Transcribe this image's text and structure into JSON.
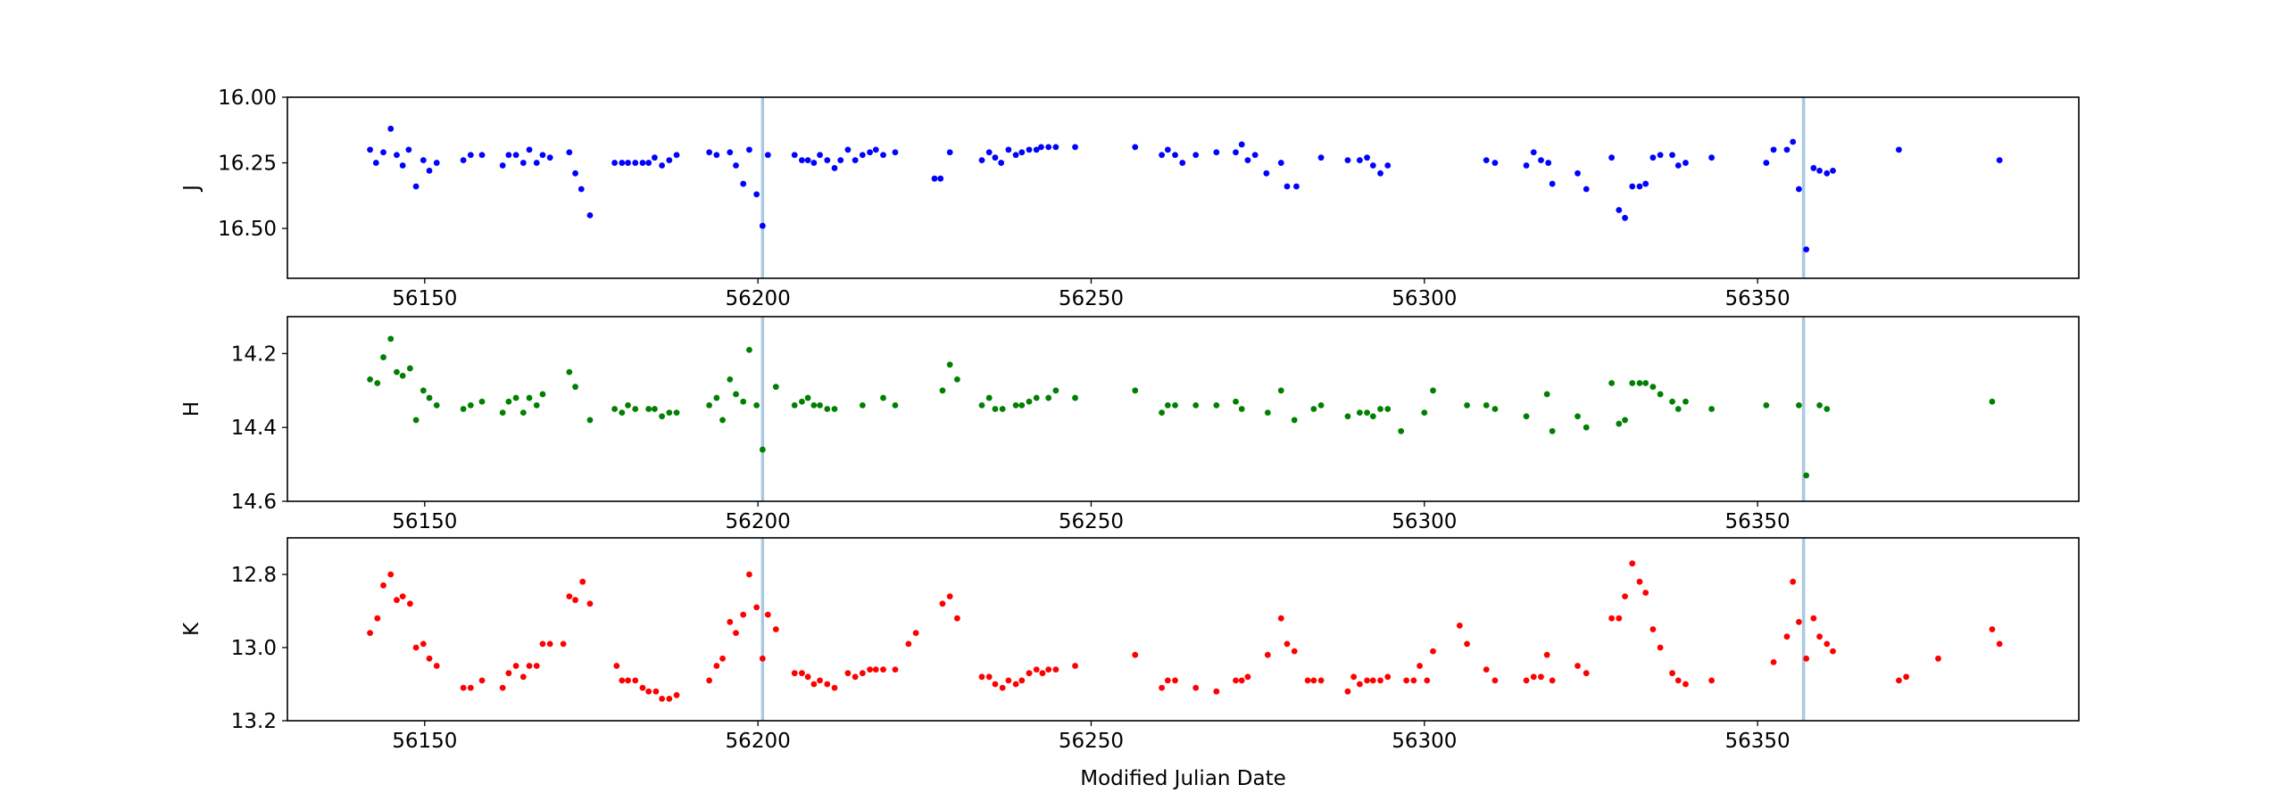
{
  "chart_data": [
    {
      "type": "scatter",
      "ylabel": "J",
      "color": "#0000ff",
      "invert_y": true,
      "xlim": [
        56129.4,
        56398.2
      ],
      "xticks": [
        56150,
        56200,
        56250,
        56300,
        56350
      ],
      "ylim": [
        16.0,
        16.69
      ],
      "yticks": [
        {
          "value": 16.0,
          "label": "16.00"
        },
        16.25,
        {
          "value": 16.5,
          "label": "16.50"
        }
      ],
      "vlines": [
        56200.7,
        56356.9
      ],
      "vline_color": "#a9c9e3",
      "x": [
        56141.8,
        56142.7,
        56143.8,
        56144.9,
        56145.8,
        56146.7,
        56147.6,
        56148.7,
        56149.8,
        56150.7,
        56151.8,
        56155.8,
        56156.9,
        56158.6,
        56161.7,
        56162.6,
        56163.7,
        56164.8,
        56165.7,
        56166.8,
        56167.7,
        56168.8,
        56171.7,
        56172.6,
        56173.5,
        56174.8,
        56178.5,
        56179.6,
        56180.5,
        56181.6,
        56182.7,
        56183.6,
        56184.5,
        56185.6,
        56186.7,
        56187.8,
        56192.7,
        56193.8,
        56195.8,
        56196.7,
        56197.8,
        56198.7,
        56199.8,
        56200.7,
        56201.5,
        56205.5,
        56206.6,
        56207.5,
        56208.4,
        56209.3,
        56210.4,
        56211.5,
        56212.4,
        56213.5,
        56214.6,
        56215.7,
        56216.8,
        56217.7,
        56218.8,
        56220.6,
        56226.5,
        56227.4,
        56228.8,
        56233.6,
        56234.7,
        56235.6,
        56236.5,
        56237.6,
        56238.7,
        56239.6,
        56240.7,
        56241.8,
        56242.5,
        56243.6,
        56244.7,
        56247.6,
        56256.6,
        56260.6,
        56261.5,
        56262.6,
        56263.7,
        56265.7,
        56268.8,
        56271.7,
        56272.6,
        56273.5,
        56274.6,
        56276.3,
        56278.5,
        56279.4,
        56280.8,
        56284.5,
        56288.5,
        56290.3,
        56291.4,
        56292.3,
        56293.4,
        56294.5,
        56309.3,
        56310.6,
        56315.3,
        56316.4,
        56317.5,
        56318.6,
        56319.2,
        56323.0,
        56324.3,
        56328.1,
        56329.2,
        56330.1,
        56331.2,
        56332.3,
        56333.2,
        56334.3,
        56335.4,
        56337.2,
        56338.1,
        56339.2,
        56343.1,
        56351.3,
        56352.4,
        56354.4,
        56355.3,
        56356.2,
        56357.3,
        56358.4,
        56359.3,
        56360.4,
        56361.3,
        56371.2,
        56386.3
      ],
      "values": [
        16.2,
        16.25,
        16.21,
        16.12,
        16.22,
        16.26,
        16.2,
        16.34,
        16.24,
        16.28,
        16.25,
        16.24,
        16.22,
        16.22,
        16.26,
        16.22,
        16.22,
        16.25,
        16.2,
        16.25,
        16.22,
        16.23,
        16.21,
        16.29,
        16.35,
        16.45,
        16.25,
        16.25,
        16.25,
        16.25,
        16.25,
        16.25,
        16.23,
        16.26,
        16.24,
        16.22,
        16.21,
        16.22,
        16.21,
        16.26,
        16.33,
        16.2,
        16.37,
        16.49,
        16.22,
        16.22,
        16.24,
        16.24,
        16.25,
        16.22,
        16.24,
        16.27,
        16.24,
        16.2,
        16.24,
        16.22,
        16.21,
        16.2,
        16.22,
        16.21,
        16.31,
        16.31,
        16.21,
        16.24,
        16.21,
        16.23,
        16.25,
        16.2,
        16.22,
        16.21,
        16.2,
        16.2,
        16.19,
        16.19,
        16.19,
        16.19,
        16.19,
        16.22,
        16.2,
        16.22,
        16.25,
        16.22,
        16.21,
        16.21,
        16.18,
        16.24,
        16.22,
        16.29,
        16.25,
        16.34,
        16.34,
        16.23,
        16.24,
        16.24,
        16.23,
        16.26,
        16.29,
        16.26,
        16.24,
        16.25,
        16.26,
        16.21,
        16.24,
        16.25,
        16.33,
        16.29,
        16.35,
        16.23,
        16.43,
        16.46,
        16.34,
        16.34,
        16.33,
        16.23,
        16.22,
        16.22,
        16.26,
        16.25,
        16.23,
        16.25,
        16.2,
        16.2,
        16.17,
        16.35,
        16.58,
        16.27,
        16.28,
        16.29,
        16.28,
        16.2,
        16.24
      ]
    },
    {
      "type": "scatter",
      "ylabel": "H",
      "color": "#008000",
      "invert_y": true,
      "xlim": [
        56129.4,
        56398.2
      ],
      "xticks": [
        56150,
        56200,
        56250,
        56300,
        56350
      ],
      "ylim": [
        14.1,
        14.6
      ],
      "yticks": [
        14.2,
        14.4,
        14.6
      ],
      "vlines": [
        56200.7,
        56356.9
      ],
      "vline_color": "#a9c9e3",
      "x": [
        56141.8,
        56142.9,
        56143.8,
        56144.9,
        56145.8,
        56146.7,
        56147.8,
        56148.7,
        56149.8,
        56150.7,
        56151.8,
        56155.8,
        56156.9,
        56158.6,
        56161.7,
        56162.6,
        56163.7,
        56164.8,
        56165.7,
        56166.8,
        56167.7,
        56171.7,
        56172.6,
        56174.8,
        56178.5,
        56179.6,
        56180.5,
        56181.6,
        56183.6,
        56184.5,
        56185.6,
        56186.7,
        56187.8,
        56192.7,
        56193.8,
        56194.7,
        56195.8,
        56196.7,
        56197.8,
        56198.7,
        56199.8,
        56200.7,
        56202.7,
        56205.5,
        56206.6,
        56207.5,
        56208.4,
        56209.3,
        56210.4,
        56211.5,
        56215.7,
        56218.8,
        56220.6,
        56227.7,
        56228.8,
        56229.9,
        56233.6,
        56234.7,
        56235.6,
        56236.7,
        56238.7,
        56239.6,
        56240.7,
        56241.8,
        56243.6,
        56244.7,
        56247.6,
        56256.6,
        56260.6,
        56261.5,
        56262.6,
        56265.7,
        56268.8,
        56271.7,
        56272.6,
        56276.5,
        56278.5,
        56280.5,
        56283.4,
        56284.5,
        56288.5,
        56290.3,
        56291.4,
        56292.3,
        56293.4,
        56294.5,
        56296.5,
        56300.0,
        56301.3,
        56306.4,
        56309.3,
        56310.6,
        56315.3,
        56318.4,
        56319.2,
        56323.0,
        56324.3,
        56328.1,
        56329.2,
        56330.1,
        56331.2,
        56332.3,
        56333.2,
        56334.3,
        56335.4,
        56337.2,
        56338.1,
        56339.2,
        56343.1,
        56351.3,
        56356.2,
        56357.3,
        56359.3,
        56360.4,
        56385.2
      ],
      "values": [
        14.27,
        14.28,
        14.21,
        14.16,
        14.25,
        14.26,
        14.24,
        14.38,
        14.3,
        14.32,
        14.34,
        14.35,
        14.34,
        14.33,
        14.36,
        14.33,
        14.32,
        14.36,
        14.32,
        14.34,
        14.31,
        14.25,
        14.29,
        14.38,
        14.35,
        14.36,
        14.34,
        14.35,
        14.35,
        14.35,
        14.37,
        14.36,
        14.36,
        14.34,
        14.32,
        14.38,
        14.27,
        14.31,
        14.33,
        14.19,
        14.34,
        14.46,
        14.29,
        14.34,
        14.33,
        14.32,
        14.34,
        14.34,
        14.35,
        14.35,
        14.34,
        14.32,
        14.34,
        14.3,
        14.23,
        14.27,
        14.34,
        14.32,
        14.35,
        14.35,
        14.34,
        14.34,
        14.33,
        14.32,
        14.32,
        14.3,
        14.32,
        14.3,
        14.36,
        14.34,
        14.34,
        14.34,
        14.34,
        14.33,
        14.35,
        14.36,
        14.3,
        14.38,
        14.35,
        14.34,
        14.37,
        14.36,
        14.36,
        14.37,
        14.35,
        14.35,
        14.41,
        14.36,
        14.3,
        14.34,
        14.34,
        14.35,
        14.37,
        14.31,
        14.41,
        14.37,
        14.4,
        14.28,
        14.39,
        14.38,
        14.28,
        14.28,
        14.28,
        14.29,
        14.31,
        14.33,
        14.35,
        14.33,
        14.35,
        14.34,
        14.34,
        14.53,
        14.34,
        14.35,
        14.33
      ]
    },
    {
      "type": "scatter",
      "ylabel": "K",
      "xlabel": "Modified Julian Date",
      "color": "#ff0000",
      "invert_y": true,
      "xlim": [
        56129.4,
        56398.2
      ],
      "xticks": [
        56150,
        56200,
        56250,
        56300,
        56350
      ],
      "ylim": [
        12.7,
        13.2
      ],
      "yticks": [
        12.8,
        {
          "value": 13.0,
          "label": "13.0"
        },
        13.2
      ],
      "vlines": [
        56200.7,
        56356.9
      ],
      "vline_color": "#a9c9e3",
      "x": [
        56141.8,
        56142.9,
        56143.8,
        56144.9,
        56145.8,
        56146.7,
        56147.8,
        56148.7,
        56149.8,
        56150.7,
        56151.8,
        56155.8,
        56156.9,
        56158.6,
        56161.7,
        56162.6,
        56163.7,
        56164.8,
        56165.7,
        56166.8,
        56167.7,
        56168.8,
        56170.8,
        56171.7,
        56172.6,
        56173.7,
        56174.8,
        56178.8,
        56179.6,
        56180.5,
        56181.6,
        56182.7,
        56183.6,
        56184.7,
        56185.6,
        56186.7,
        56187.8,
        56192.7,
        56193.8,
        56194.7,
        56195.8,
        56196.7,
        56197.8,
        56198.7,
        56199.8,
        56200.7,
        56201.5,
        56202.7,
        56205.5,
        56206.6,
        56207.5,
        56208.4,
        56209.3,
        56210.4,
        56211.5,
        56213.5,
        56214.6,
        56215.7,
        56216.8,
        56217.7,
        56218.8,
        56220.6,
        56222.6,
        56223.7,
        56227.7,
        56228.8,
        56229.9,
        56233.6,
        56234.7,
        56235.6,
        56236.7,
        56237.6,
        56238.7,
        56239.6,
        56240.7,
        56241.8,
        56242.7,
        56243.6,
        56244.7,
        56247.6,
        56256.6,
        56260.6,
        56261.5,
        56262.6,
        56265.7,
        56268.8,
        56271.7,
        56272.6,
        56273.5,
        56276.5,
        56278.5,
        56279.4,
        56280.5,
        56282.5,
        56283.4,
        56284.5,
        56288.5,
        56289.4,
        56290.3,
        56291.4,
        56292.3,
        56293.4,
        56294.5,
        56297.3,
        56298.4,
        56299.3,
        56300.4,
        56301.3,
        56305.3,
        56306.4,
        56309.3,
        56310.6,
        56315.3,
        56316.4,
        56317.5,
        56318.4,
        56319.2,
        56323.0,
        56324.3,
        56328.1,
        56329.2,
        56330.1,
        56331.2,
        56332.3,
        56333.2,
        56334.3,
        56335.4,
        56337.2,
        56338.1,
        56339.2,
        56343.1,
        56352.4,
        56354.4,
        56355.3,
        56356.2,
        56357.3,
        56358.4,
        56359.3,
        56360.4,
        56361.3,
        56371.2,
        56372.3,
        56377.1,
        56385.2,
        56386.3
      ],
      "values": [
        12.96,
        12.92,
        12.83,
        12.8,
        12.87,
        12.86,
        12.88,
        13.0,
        12.99,
        13.03,
        13.05,
        13.11,
        13.11,
        13.09,
        13.11,
        13.07,
        13.05,
        13.08,
        13.05,
        13.05,
        12.99,
        12.99,
        12.99,
        12.86,
        12.87,
        12.82,
        12.88,
        13.05,
        13.09,
        13.09,
        13.09,
        13.11,
        13.12,
        13.12,
        13.14,
        13.14,
        13.13,
        13.09,
        13.05,
        13.03,
        12.93,
        12.96,
        12.91,
        12.8,
        12.89,
        13.03,
        12.91,
        12.95,
        13.07,
        13.07,
        13.08,
        13.1,
        13.09,
        13.1,
        13.11,
        13.07,
        13.08,
        13.07,
        13.06,
        13.06,
        13.06,
        13.06,
        12.99,
        12.96,
        12.88,
        12.86,
        12.92,
        13.08,
        13.08,
        13.1,
        13.11,
        13.09,
        13.1,
        13.09,
        13.07,
        13.06,
        13.07,
        13.06,
        13.06,
        13.05,
        13.02,
        13.11,
        13.09,
        13.09,
        13.11,
        13.12,
        13.09,
        13.09,
        13.08,
        13.02,
        12.92,
        12.99,
        13.01,
        13.09,
        13.09,
        13.09,
        13.12,
        13.08,
        13.1,
        13.09,
        13.09,
        13.09,
        13.08,
        13.09,
        13.09,
        13.05,
        13.09,
        13.01,
        12.94,
        12.99,
        13.06,
        13.09,
        13.09,
        13.08,
        13.08,
        13.02,
        13.09,
        13.05,
        13.07,
        12.92,
        12.92,
        12.86,
        12.77,
        12.82,
        12.85,
        12.95,
        13.0,
        13.07,
        13.09,
        13.1,
        13.09,
        13.04,
        12.97,
        12.82,
        12.93,
        13.03,
        12.92,
        12.97,
        12.99,
        13.01,
        13.09,
        13.08,
        13.03,
        12.95,
        12.99
      ]
    }
  ]
}
